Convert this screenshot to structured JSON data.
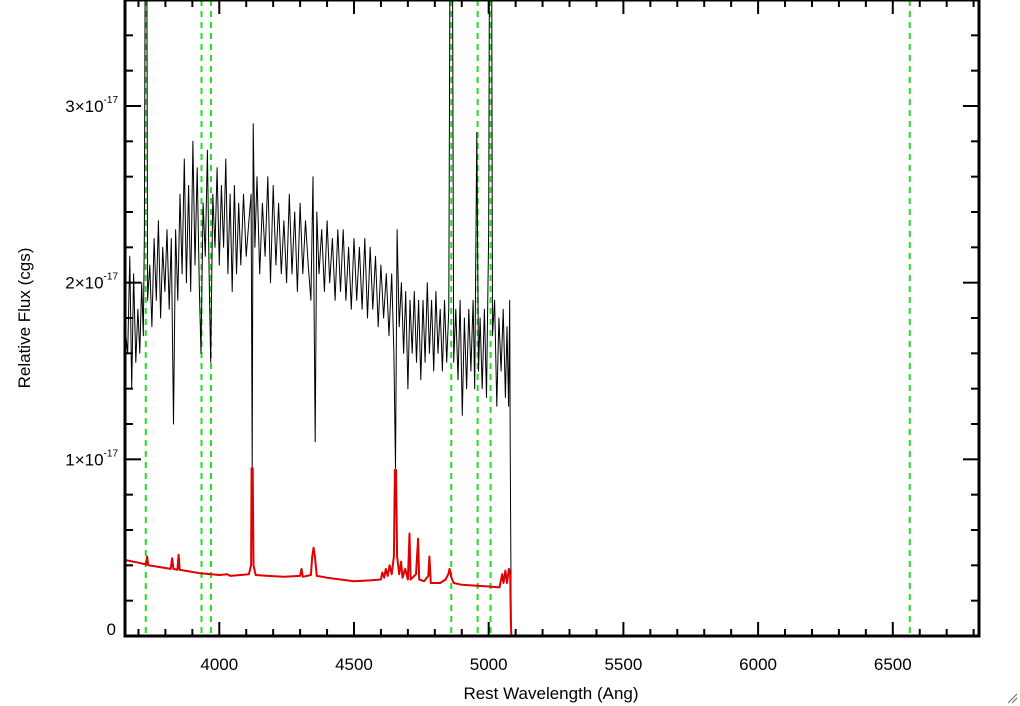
{
  "chart_data": {
    "type": "line",
    "title": "",
    "xlabel": "Rest Wavelength (Ang)",
    "ylabel": "Relative Flux (cgs)",
    "xlim": [
      3650,
      6820
    ],
    "ylim": [
      0,
      3.6e-17
    ],
    "xticks": [
      {
        "value": 4000,
        "label": "4000"
      },
      {
        "value": 4500,
        "label": "4500"
      },
      {
        "value": 5000,
        "label": "5000"
      },
      {
        "value": 5500,
        "label": "5500"
      },
      {
        "value": 6000,
        "label": "6000"
      },
      {
        "value": 6500,
        "label": "6500"
      }
    ],
    "yticks": [
      {
        "value": 0,
        "mantissa": "0",
        "exponent": ""
      },
      {
        "value": 1e-17,
        "mantissa": "1×10",
        "exponent": "-17"
      },
      {
        "value": 2e-17,
        "mantissa": "2×10",
        "exponent": "-17"
      },
      {
        "value": 3e-17,
        "mantissa": "3×10",
        "exponent": "-17"
      }
    ],
    "grid": false,
    "legend": "none",
    "reference_lines": [
      3727,
      3934,
      3969,
      4861,
      4959,
      5007,
      6563
    ],
    "series": [
      {
        "color": "#000000",
        "points": [
          [
            3650,
            1.75e-17
          ],
          [
            3660,
            1.6e-17
          ],
          [
            3668,
            2.15e-17
          ],
          [
            3675,
            1.4e-17
          ],
          [
            3682,
            2.05e-17
          ],
          [
            3690,
            1.55e-17
          ],
          [
            3698,
            1.85e-17
          ],
          [
            3705,
            1.6e-17
          ],
          [
            3712,
            2e-17
          ],
          [
            3718,
            1.7e-17
          ],
          [
            3722,
            2.3e-17
          ],
          [
            3726,
            4.5e-17
          ],
          [
            3730,
            4.5e-17
          ],
          [
            3734,
            1.9e-17
          ],
          [
            3742,
            2.1e-17
          ],
          [
            3750,
            1.75e-17
          ],
          [
            3758,
            2.25e-17
          ],
          [
            3766,
            1.9e-17
          ],
          [
            3774,
            2.35e-17
          ],
          [
            3782,
            1.8e-17
          ],
          [
            3790,
            2.2e-17
          ],
          [
            3798,
            1.95e-17
          ],
          [
            3806,
            2.3e-17
          ],
          [
            3814,
            1.85e-17
          ],
          [
            3822,
            2.25e-17
          ],
          [
            3830,
            1.2e-17
          ],
          [
            3838,
            2.3e-17
          ],
          [
            3846,
            1.9e-17
          ],
          [
            3854,
            2.5e-17
          ],
          [
            3862,
            2.05e-17
          ],
          [
            3870,
            2.7e-17
          ],
          [
            3878,
            2e-17
          ],
          [
            3886,
            2.55e-17
          ],
          [
            3894,
            1.95e-17
          ],
          [
            3902,
            2.8e-17
          ],
          [
            3910,
            2.1e-17
          ],
          [
            3918,
            2.65e-17
          ],
          [
            3926,
            1.95e-17
          ],
          [
            3932,
            1.6e-17
          ],
          [
            3940,
            2.45e-17
          ],
          [
            3948,
            2.15e-17
          ],
          [
            3956,
            2.75e-17
          ],
          [
            3962,
            2.05e-17
          ],
          [
            3968,
            1.55e-17
          ],
          [
            3976,
            2.5e-17
          ],
          [
            3984,
            2.2e-17
          ],
          [
            3992,
            2.65e-17
          ],
          [
            4000,
            2.1e-17
          ],
          [
            4008,
            2.55e-17
          ],
          [
            4016,
            2.2e-17
          ],
          [
            4024,
            2.7e-17
          ],
          [
            4032,
            2.05e-17
          ],
          [
            4040,
            2.5e-17
          ],
          [
            4048,
            1.95e-17
          ],
          [
            4056,
            2.55e-17
          ],
          [
            4064,
            2.05e-17
          ],
          [
            4072,
            2.45e-17
          ],
          [
            4080,
            2.1e-17
          ],
          [
            4090,
            2.5e-17
          ],
          [
            4100,
            2.15e-17
          ],
          [
            4110,
            2.35e-17
          ],
          [
            4118,
            2.5e-17
          ],
          [
            4122,
            9.5e-18
          ],
          [
            4126,
            2.9e-17
          ],
          [
            4132,
            2.2e-17
          ],
          [
            4140,
            2.6e-17
          ],
          [
            4150,
            2.05e-17
          ],
          [
            4160,
            2.45e-17
          ],
          [
            4170,
            2.15e-17
          ],
          [
            4180,
            2.6e-17
          ],
          [
            4190,
            2e-17
          ],
          [
            4200,
            2.55e-17
          ],
          [
            4210,
            2.1e-17
          ],
          [
            4220,
            2.45e-17
          ],
          [
            4230,
            2.05e-17
          ],
          [
            4240,
            2.35e-17
          ],
          [
            4250,
            2e-17
          ],
          [
            4260,
            2.5e-17
          ],
          [
            4270,
            2.05e-17
          ],
          [
            4280,
            2.4e-17
          ],
          [
            4290,
            1.95e-17
          ],
          [
            4300,
            2.45e-17
          ],
          [
            4310,
            2.05e-17
          ],
          [
            4320,
            2.35e-17
          ],
          [
            4330,
            2.1e-17
          ],
          [
            4340,
            1.9e-17
          ],
          [
            4348,
            2.6e-17
          ],
          [
            4356,
            1.1e-17
          ],
          [
            4362,
            2.4e-17
          ],
          [
            4370,
            2.05e-17
          ],
          [
            4380,
            2.3e-17
          ],
          [
            4390,
            1.95e-17
          ],
          [
            4400,
            2.35e-17
          ],
          [
            4410,
            2e-17
          ],
          [
            4420,
            2.25e-17
          ],
          [
            4430,
            1.9e-17
          ],
          [
            4440,
            2.3e-17
          ],
          [
            4450,
            1.95e-17
          ],
          [
            4460,
            2.3e-17
          ],
          [
            4470,
            1.9e-17
          ],
          [
            4480,
            2.2e-17
          ],
          [
            4490,
            1.85e-17
          ],
          [
            4500,
            2.25e-17
          ],
          [
            4510,
            1.9e-17
          ],
          [
            4520,
            2.2e-17
          ],
          [
            4530,
            1.85e-17
          ],
          [
            4540,
            2.25e-17
          ],
          [
            4550,
            1.8e-17
          ],
          [
            4560,
            2.2e-17
          ],
          [
            4570,
            1.85e-17
          ],
          [
            4580,
            2.15e-17
          ],
          [
            4590,
            1.75e-17
          ],
          [
            4600,
            2.1e-17
          ],
          [
            4610,
            1.8e-17
          ],
          [
            4620,
            2.05e-17
          ],
          [
            4630,
            1.7e-17
          ],
          [
            4640,
            2.05e-17
          ],
          [
            4648,
            1.6e-17
          ],
          [
            4654,
            9.5e-18
          ],
          [
            4660,
            2.3e-17
          ],
          [
            4668,
            1.75e-17
          ],
          [
            4676,
            2e-17
          ],
          [
            4684,
            1.6e-17
          ],
          [
            4692,
            1.95e-17
          ],
          [
            4700,
            1.4e-17
          ],
          [
            4708,
            1.9e-17
          ],
          [
            4716,
            1.6e-17
          ],
          [
            4724,
            1.95e-17
          ],
          [
            4732,
            1.55e-17
          ],
          [
            4740,
            1.9e-17
          ],
          [
            4748,
            1.45e-17
          ],
          [
            4756,
            1.9e-17
          ],
          [
            4764,
            1.55e-17
          ],
          [
            4772,
            2e-17
          ],
          [
            4780,
            1.6e-17
          ],
          [
            4788,
            1.9e-17
          ],
          [
            4796,
            1.5e-17
          ],
          [
            4804,
            1.95e-17
          ],
          [
            4812,
            1.6e-17
          ],
          [
            4820,
            1.85e-17
          ],
          [
            4828,
            1.5e-17
          ],
          [
            4836,
            1.9e-17
          ],
          [
            4844,
            1.55e-17
          ],
          [
            4852,
            1.85e-17
          ],
          [
            4858,
            4.6e-17
          ],
          [
            4864,
            4.6e-17
          ],
          [
            4870,
            1.55e-17
          ],
          [
            4878,
            1.85e-17
          ],
          [
            4886,
            1.45e-17
          ],
          [
            4894,
            1.9e-17
          ],
          [
            4902,
            1.25e-17
          ],
          [
            4910,
            1.8e-17
          ],
          [
            4918,
            1.4e-17
          ],
          [
            4926,
            1.85e-17
          ],
          [
            4934,
            1.5e-17
          ],
          [
            4942,
            1.9e-17
          ],
          [
            4948,
            1.4e-17
          ],
          [
            4956,
            2.85e-17
          ],
          [
            4962,
            1.5e-17
          ],
          [
            4968,
            1.8e-17
          ],
          [
            4976,
            1.4e-17
          ],
          [
            4984,
            1.85e-17
          ],
          [
            4992,
            1.35e-17
          ],
          [
            5000,
            2.3e-17
          ],
          [
            5004,
            4.6e-17
          ],
          [
            5010,
            4.6e-17
          ],
          [
            5014,
            1.7e-17
          ],
          [
            5022,
            1.9e-17
          ],
          [
            5030,
            1.3e-17
          ],
          [
            5038,
            1.8e-17
          ],
          [
            5046,
            1.5e-17
          ],
          [
            5054,
            1.85e-17
          ],
          [
            5062,
            1.35e-17
          ],
          [
            5068,
            1.75e-17
          ],
          [
            5074,
            1.3e-17
          ],
          [
            5078,
            1.9e-17
          ],
          [
            5080,
            1.1e-17
          ],
          [
            5082,
            5e-18
          ],
          [
            5084,
            0
          ],
          [
            6820,
            0
          ]
        ]
      },
      {
        "color": "#e00000",
        "points": [
          [
            3650,
            4.3e-18
          ],
          [
            3700,
            4.15e-18
          ],
          [
            3728,
            4.05e-18
          ],
          [
            3732,
            4.5e-18
          ],
          [
            3736,
            4e-18
          ],
          [
            3780,
            3.9e-18
          ],
          [
            3820,
            3.8e-18
          ],
          [
            3825,
            4.4e-18
          ],
          [
            3830,
            3.8e-18
          ],
          [
            3845,
            3.75e-18
          ],
          [
            3849,
            4.6e-18
          ],
          [
            3853,
            3.75e-18
          ],
          [
            3890,
            3.65e-18
          ],
          [
            3930,
            3.55e-18
          ],
          [
            3970,
            3.5e-18
          ],
          [
            4000,
            3.45e-18
          ],
          [
            4030,
            3.5e-18
          ],
          [
            4040,
            3.4e-18
          ],
          [
            4080,
            3.45e-18
          ],
          [
            4110,
            3.5e-18
          ],
          [
            4118,
            4e-18
          ],
          [
            4120,
            9.5e-18
          ],
          [
            4124,
            9.5e-18
          ],
          [
            4127,
            4e-18
          ],
          [
            4135,
            3.45e-18
          ],
          [
            4180,
            3.4e-18
          ],
          [
            4240,
            3.35e-18
          ],
          [
            4300,
            3.4e-18
          ],
          [
            4305,
            3.8e-18
          ],
          [
            4310,
            3.35e-18
          ],
          [
            4340,
            3.45e-18
          ],
          [
            4345,
            4.5e-18
          ],
          [
            4350,
            5e-18
          ],
          [
            4355,
            4.5e-18
          ],
          [
            4362,
            3.4e-18
          ],
          [
            4400,
            3.3e-18
          ],
          [
            4450,
            3.2e-18
          ],
          [
            4500,
            3.1e-18
          ],
          [
            4560,
            3.15e-18
          ],
          [
            4600,
            3.2e-18
          ],
          [
            4605,
            3.6e-18
          ],
          [
            4612,
            3.3e-18
          ],
          [
            4618,
            3.8e-18
          ],
          [
            4625,
            3.4e-18
          ],
          [
            4632,
            4e-18
          ],
          [
            4640,
            3.5e-18
          ],
          [
            4648,
            4.5e-18
          ],
          [
            4652,
            9.4e-18
          ],
          [
            4656,
            9.4e-18
          ],
          [
            4660,
            4.5e-18
          ],
          [
            4668,
            3.5e-18
          ],
          [
            4675,
            4.2e-18
          ],
          [
            4680,
            3.3e-18
          ],
          [
            4690,
            3.8e-18
          ],
          [
            4700,
            3.2e-18
          ],
          [
            4706,
            5.8e-18
          ],
          [
            4710,
            3.2e-18
          ],
          [
            4730,
            3.5e-18
          ],
          [
            4738,
            5.5e-18
          ],
          [
            4742,
            3.2e-18
          ],
          [
            4760,
            3.1e-18
          ],
          [
            4776,
            3.4e-18
          ],
          [
            4780,
            4.5e-18
          ],
          [
            4785,
            3e-18
          ],
          [
            4820,
            3e-18
          ],
          [
            4840,
            3.2e-18
          ],
          [
            4850,
            3.5e-18
          ],
          [
            4855,
            3.8e-18
          ],
          [
            4862,
            3.3e-18
          ],
          [
            4870,
            3e-18
          ],
          [
            4900,
            2.9e-18
          ],
          [
            4950,
            2.85e-18
          ],
          [
            5000,
            2.8e-18
          ],
          [
            5040,
            2.75e-18
          ],
          [
            5050,
            3.5e-18
          ],
          [
            5055,
            3e-18
          ],
          [
            5062,
            3.7e-18
          ],
          [
            5068,
            3e-18
          ],
          [
            5075,
            3.8e-18
          ],
          [
            5080,
            3.5e-18
          ],
          [
            5082,
            1e-18
          ],
          [
            5084,
            0
          ],
          [
            6820,
            0
          ]
        ]
      }
    ]
  }
}
